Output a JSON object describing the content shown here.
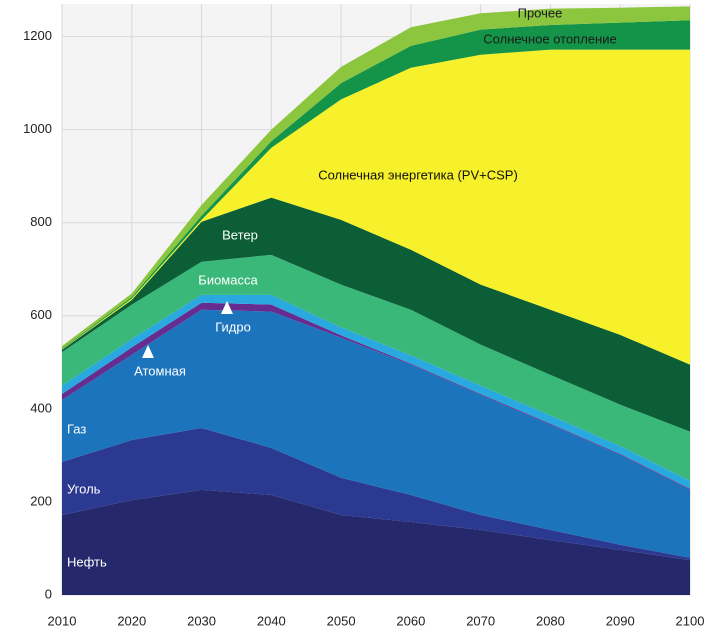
{
  "chart_data": {
    "type": "stacked_area",
    "x": [
      2010,
      2020,
      2030,
      2040,
      2050,
      2060,
      2070,
      2080,
      2090,
      2100
    ],
    "xlim": [
      2010,
      2100
    ],
    "xticks": [
      2010,
      2020,
      2030,
      2040,
      2050,
      2060,
      2070,
      2080,
      2090,
      2100
    ],
    "ylim": [
      0,
      1270
    ],
    "yticks": [
      0,
      200,
      400,
      600,
      800,
      1000,
      1200
    ],
    "grid": true,
    "series": [
      {
        "name": "Нефть",
        "color": "#25296b",
        "values": [
          172,
          204,
          226,
          215,
          172,
          157,
          140,
          118,
          97,
          75
        ]
      },
      {
        "name": "Уголь",
        "color": "#2b3990",
        "values": [
          114,
          129,
          133,
          101,
          80,
          58,
          32,
          22,
          11,
          5
        ]
      },
      {
        "name": "Газ",
        "color": "#1c75bc",
        "values": [
          133,
          183,
          254,
          293,
          301,
          280,
          258,
          226,
          193,
          146
        ]
      },
      {
        "name": "Атомная",
        "color": "#662d91",
        "values": [
          13,
          16,
          15,
          15,
          5,
          2,
          2,
          2,
          2,
          2
        ]
      },
      {
        "name": "Гидро",
        "color": "#29a9e0",
        "values": [
          18,
          18,
          17,
          21,
          17,
          18,
          18,
          18,
          17,
          17
        ]
      },
      {
        "name": "Биомасса",
        "color": "#3ab87a",
        "values": [
          72,
          74,
          71,
          86,
          92,
          98,
          88,
          87,
          89,
          106
        ]
      },
      {
        "name": "Ветер",
        "color": "#0b5e35",
        "values": [
          5,
          10,
          86,
          123,
          139,
          129,
          129,
          140,
          150,
          144
        ]
      },
      {
        "name": "Солнечная энергетика (PV+CSP)",
        "color": "#f6f12a",
        "values": [
          1,
          3,
          4,
          107,
          259,
          391,
          494,
          559,
          613,
          677
        ]
      },
      {
        "name": "Солнечное отопление",
        "color": "#149448",
        "values": [
          2,
          3,
          9,
          14,
          35,
          47,
          54,
          53,
          58,
          63
        ]
      },
      {
        "name": "Прочее",
        "color": "#8cc63f",
        "values": [
          5,
          8,
          23,
          25,
          35,
          40,
          35,
          35,
          32,
          30
        ]
      }
    ]
  }
}
